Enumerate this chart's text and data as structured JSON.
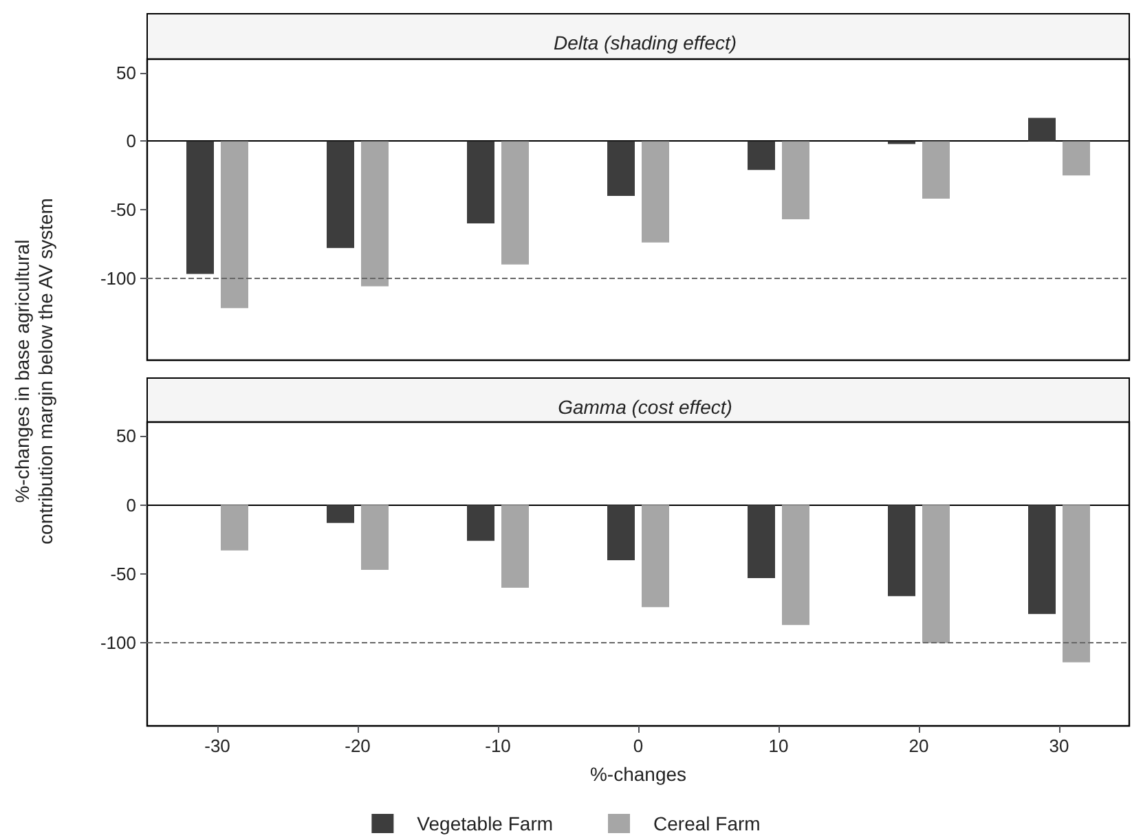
{
  "chart_data": [
    {
      "type": "bar",
      "title": "Delta (shading effect)",
      "ylabel": "%-changes in base agricultural\ncontribution margin below the AV system",
      "categories": [
        "-30",
        "-20",
        "-10",
        "0",
        "10",
        "20",
        "30"
      ],
      "series": [
        {
          "color": "#3d3d3d",
          "values": [
            -97,
            -78,
            -60,
            -40,
            -21,
            -2,
            17
          ]
        },
        {
          "color": "#a6a6a6",
          "values": [
            -122,
            -106,
            -90,
            -74,
            -57,
            -42,
            -25
          ]
        }
      ],
      "ylim": [
        -160,
        60
      ],
      "yticks": [
        -100,
        -50,
        0,
        50
      ],
      "grid": false,
      "legend": false,
      "tick_labels": "y",
      "ref_lines": [
        {
          "axis": "y",
          "value": -100,
          "line_style": "dashed",
          "color": "#666666"
        }
      ]
    },
    {
      "type": "bar",
      "title": "Gamma (cost effect)",
      "xlabel": "%-changes",
      "categories": [
        "-30",
        "-20",
        "-10",
        "0",
        "10",
        "20",
        "30"
      ],
      "series": [
        {
          "name": "Vegetable Farm",
          "color": "#3d3d3d",
          "values": [
            0,
            -13,
            -26,
            -40,
            -53,
            -66,
            -79
          ]
        },
        {
          "name": "Cereal Farm",
          "color": "#a6a6a6",
          "values": [
            -33,
            -47,
            -60,
            -74,
            -87,
            -100,
            -114
          ]
        }
      ],
      "ylim": [
        -160,
        60
      ],
      "yticks": [
        -100,
        -50,
        0,
        50
      ],
      "grid": false,
      "legend": "bottom",
      "ref_lines": [
        {
          "axis": "y",
          "value": -100,
          "line_style": "dashed",
          "color": "#666666"
        }
      ]
    }
  ]
}
